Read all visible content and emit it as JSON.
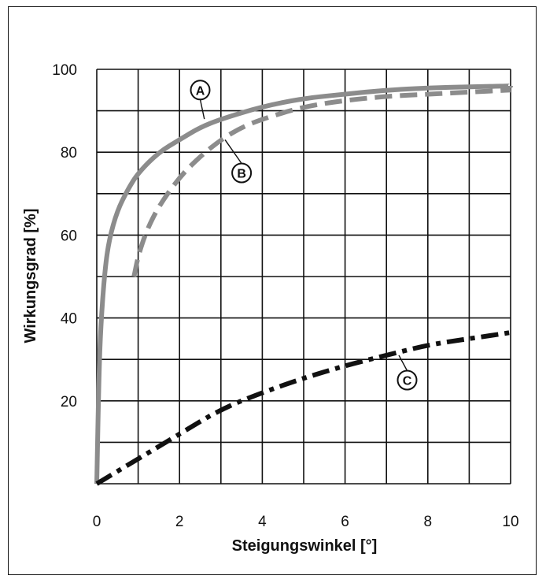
{
  "chart_data": {
    "type": "line",
    "xlabel": "Steigungswinkel  [°]",
    "ylabel": "Wirkungsgrad  [%]",
    "xlim": [
      0,
      10
    ],
    "ylim": [
      0,
      100
    ],
    "grid": true,
    "x_ticks": [
      "0",
      "2",
      "4",
      "6",
      "8",
      "10"
    ],
    "y_ticks": [
      "20",
      "40",
      "60",
      "80",
      "100"
    ],
    "series": [
      {
        "name": "A",
        "style": "solid",
        "color": "#8c8c8c",
        "x": [
          0,
          0.05,
          0.1,
          0.2,
          0.3,
          0.5,
          0.75,
          1,
          1.5,
          2,
          2.5,
          3,
          4,
          5,
          6,
          7,
          8,
          9,
          10
        ],
        "y": [
          0,
          25,
          39,
          52,
          59,
          66,
          71,
          75,
          80,
          83,
          86,
          88,
          91,
          93,
          94,
          95,
          95.5,
          95.8,
          96
        ]
      },
      {
        "name": "B",
        "style": "dashed",
        "color": "#8c8c8c",
        "x": [
          0.9,
          1,
          1.2,
          1.5,
          2,
          2.5,
          3,
          3.5,
          4,
          5,
          6,
          7,
          8,
          9,
          10
        ],
        "y": [
          50,
          55,
          61,
          67,
          74,
          79,
          83,
          86,
          88,
          91,
          92.5,
          93.5,
          94,
          94.5,
          95
        ]
      },
      {
        "name": "C",
        "style": "dash-dot",
        "color": "#111111",
        "x": [
          0,
          1,
          2,
          3,
          4,
          5,
          6,
          7,
          8,
          9,
          10
        ],
        "y": [
          0,
          6,
          12,
          18,
          22,
          25.5,
          28.5,
          31,
          33.5,
          35,
          36.5
        ]
      }
    ],
    "markers": [
      {
        "label": "A",
        "x": 2.5,
        "y": 95
      },
      {
        "label": "B",
        "x": 3.5,
        "y": 75
      },
      {
        "label": "C",
        "x": 7.5,
        "y": 25
      }
    ]
  }
}
